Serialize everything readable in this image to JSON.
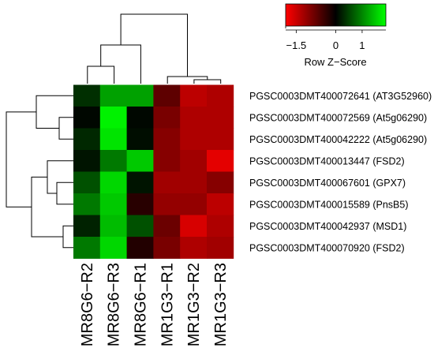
{
  "chart_data": {
    "type": "heatmap",
    "title": "",
    "columns": [
      "MR8G6−R2",
      "MR8G6−R3",
      "MR8G6−R1",
      "MR1G3−R1",
      "MR1G3−R2",
      "MR1G3−R3"
    ],
    "rows": [
      "PGSC0003DMT400072641 (AT3G52960)",
      "PGSC0003DMT400072569 (At5g06290)",
      "PGSC0003DMT400042222 (At5g06290)",
      "PGSC0003DMT400013447 (FSD2)",
      "PGSC0003DMT400067601 (GPX7)",
      "PGSC0003DMT400015589 (PnsB5)",
      "PGSC0003DMT400042937 (MSD1)",
      "PGSC0003DMT400070920 (FSD2)"
    ],
    "values": [
      [
        0.35,
        1.2,
        1.2,
        -0.7,
        -1.4,
        -1.3
      ],
      [
        0.05,
        1.8,
        0.05,
        -0.9,
        -1.3,
        -1.3
      ],
      [
        0.3,
        1.7,
        0.1,
        -1.0,
        -1.3,
        -1.3
      ],
      [
        0.15,
        0.9,
        1.5,
        -1.0,
        -1.2,
        -1.7
      ],
      [
        0.6,
        1.6,
        0.15,
        -1.2,
        -1.2,
        -1.0
      ],
      [
        0.9,
        1.5,
        -0.3,
        -1.1,
        -1.1,
        -1.4
      ],
      [
        0.25,
        1.4,
        0.6,
        -0.8,
        -1.6,
        -1.3
      ],
      [
        0.9,
        1.6,
        -0.25,
        -0.9,
        -1.3,
        -1.2
      ]
    ],
    "color_scale": {
      "low_color": "#FF0000",
      "mid_color": "#000000",
      "high_color": "#00FF00",
      "range": [
        -1.9,
        1.9
      ]
    },
    "legend": {
      "title": "Row Z−Score",
      "ticks": [
        -1.5,
        0,
        1
      ],
      "tick_labels": [
        "−1.5",
        "0",
        "1"
      ],
      "placement": "top-right"
    },
    "column_dendrogram": true,
    "row_dendrogram": true
  }
}
